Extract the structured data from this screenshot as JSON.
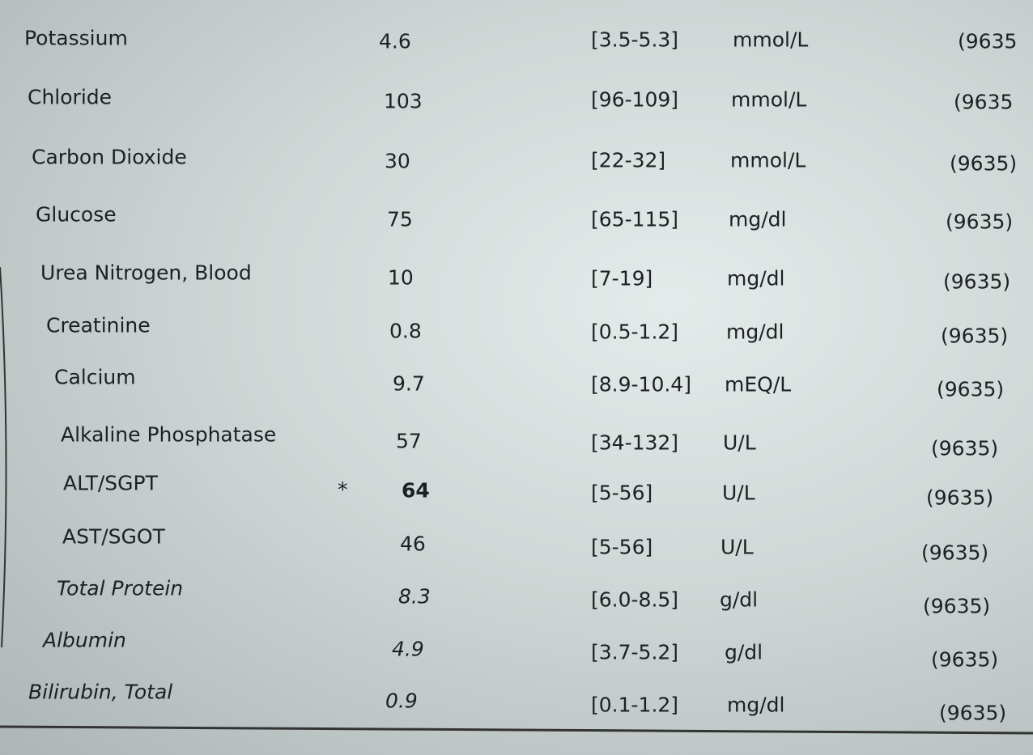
{
  "table": {
    "rows": [
      {
        "test": "Potassium",
        "result": "4.6",
        "range": "[3.5-5.3]",
        "unit": "mmol/L",
        "lab": "(9635"
      },
      {
        "test": "Chloride",
        "result": "103",
        "range": "[96-109]",
        "unit": "mmol/L",
        "lab": "(9635"
      },
      {
        "test": "Carbon Dioxide",
        "result": "30",
        "range": "[22-32]",
        "unit": "mmol/L",
        "lab": "(9635)"
      },
      {
        "test": "Glucose",
        "result": "75",
        "range": "[65-115]",
        "unit": "mg/dl",
        "lab": "(9635)"
      },
      {
        "test": "Urea Nitrogen, Blood",
        "result": "10",
        "range": "[7-19]",
        "unit": "mg/dl",
        "lab": "(9635)"
      },
      {
        "test": "Creatinine",
        "result": "0.8",
        "range": "[0.5-1.2]",
        "unit": "mg/dl",
        "lab": "(9635)"
      },
      {
        "test": "Calcium",
        "result": "9.7",
        "range": "[8.9-10.4]",
        "unit": "mEQ/L",
        "lab": "(9635)"
      },
      {
        "test": "Alkaline Phosphatase",
        "result": "57",
        "range": "[34-132]",
        "unit": "U/L",
        "lab": "(9635)"
      },
      {
        "test": "ALT/SGPT",
        "flag": "*",
        "result": "64",
        "range": "[5-56]",
        "unit": "U/L",
        "lab": "(9635)"
      },
      {
        "test": "AST/SGOT",
        "result": "46",
        "range": "[5-56]",
        "unit": "U/L",
        "lab": "(9635)"
      },
      {
        "test": "Total Protein",
        "result": "8.3",
        "range": "[6.0-8.5]",
        "unit": "g/dl",
        "lab": "(9635)"
      },
      {
        "test": "Albumin",
        "result": "4.9",
        "range": "[3.7-5.2]",
        "unit": "g/dl",
        "lab": "(9635)"
      },
      {
        "test": "Bilirubin, Total",
        "result": "0.9",
        "range": "[0.1-1.2]",
        "unit": "mg/dl",
        "lab": "(9635)"
      }
    ]
  }
}
